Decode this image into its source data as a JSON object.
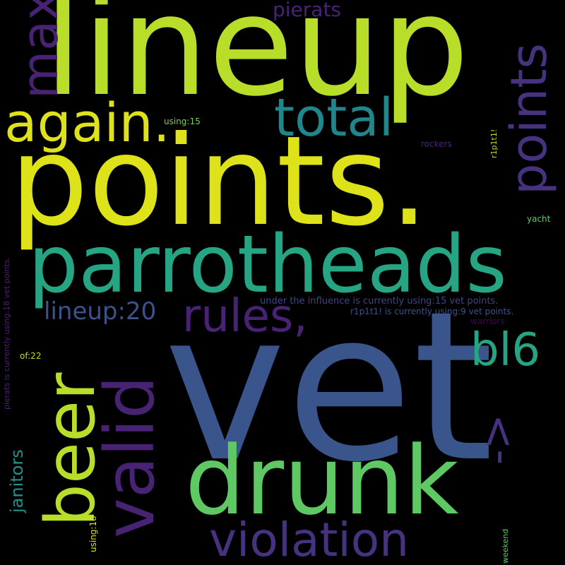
{
  "words": {
    "lineup_big": "lineup",
    "points_big": "points.",
    "vet": "vet",
    "parrotheads": "parrotheads",
    "drunk": "drunk",
    "again": "again.",
    "total": "total",
    "rules": "rules,",
    "bl6": "bl6",
    "violation": "violation",
    "lineup20": "lineup:20",
    "pierats": "pierats",
    "under": "under the influence is currently using:15 vet points.",
    "r1p1t1_line": "r1p1t1! is currently using:9 vet points.",
    "warriors": "warriors",
    "using15": "using:15",
    "rockers": "rockers",
    "yacht": "yacht",
    "of22": "of:22",
    "max": "max",
    "points_v": "points",
    "beer": "beer",
    "valid": "valid",
    "arrow": "->",
    "janitors": "janitors",
    "using18": "using:18",
    "weekend": "weekend",
    "r1p1t1": "r1p1t1!",
    "pierats_line": "pierats is currently using:18 vet points."
  },
  "colors": {
    "background": "#000000",
    "palette": [
      "#b8de29",
      "#dde318",
      "#25a584",
      "#21918c",
      "#3a548c",
      "#46327e",
      "#482374",
      "#5ec962",
      "#414487"
    ]
  }
}
